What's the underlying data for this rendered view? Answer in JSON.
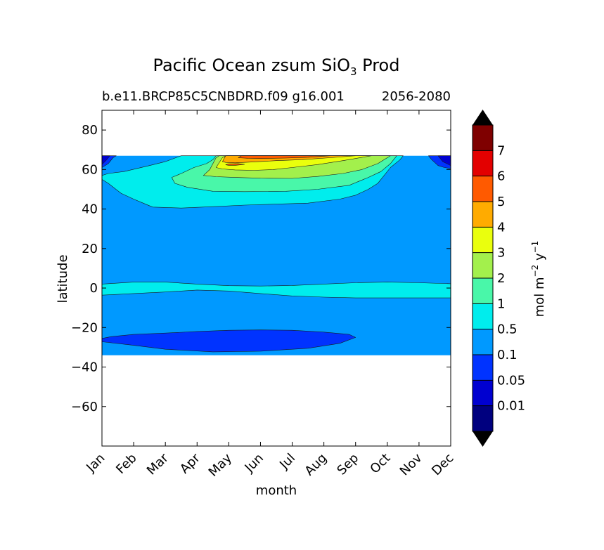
{
  "chart_data": {
    "type": "heatmap",
    "subtype": "filled-contour",
    "title": "Pacific Ocean zsum SiO",
    "title_subscript": "3",
    "title_suffix": " Prod",
    "subtitle_left": "b.e11.BRCP85C5CNBDRD.f09 g16.001",
    "subtitle_right": "2056-2080",
    "xlabel": "month",
    "ylabel": "latitude",
    "x_ticks": [
      "Jan",
      "Feb",
      "Mar",
      "Apr",
      "May",
      "Jun",
      "Jul",
      "Aug",
      "Sep",
      "Oct",
      "Nov",
      "Dec"
    ],
    "xlim": [
      0,
      11
    ],
    "ylim": [
      -80,
      90
    ],
    "y_ticks": [
      80,
      60,
      40,
      20,
      0,
      -20,
      -40,
      -60
    ],
    "y_tick_labels": [
      "80",
      "60",
      "40",
      "20",
      "0",
      "−20",
      "−40",
      "−60"
    ],
    "data_extent_lat": [
      -34,
      67
    ],
    "grid": false,
    "colorbar": {
      "orientation": "vertical",
      "label_main": "mol m",
      "label_exp1": "−2",
      "label_mid": " y",
      "label_exp2": "−1",
      "levels": [
        "0.01",
        "0.05",
        "0.1",
        "0.5",
        "1",
        "2",
        "3",
        "4",
        "5",
        "6",
        "7"
      ],
      "colors": [
        "#00007f",
        "#0000d0",
        "#0033ff",
        "#0099ff",
        "#00eded",
        "#49f7a9",
        "#a3f04c",
        "#eaff0d",
        "#ffab00",
        "#ff5a00",
        "#e30000",
        "#7f0000"
      ],
      "extend": "both"
    },
    "contour_regions": [
      {
        "level_index": 3,
        "label": "0.1 to 0.5",
        "points": [
          [
            0,
            -34
          ],
          [
            11,
            -34
          ],
          [
            11,
            67
          ],
          [
            0,
            67
          ]
        ]
      },
      {
        "level_index": 2,
        "label": "0.05 to 0.1",
        "points": [
          [
            0,
            -25.5
          ],
          [
            0.3,
            -24.6
          ],
          [
            1,
            -23.5
          ],
          [
            2,
            -22.8
          ],
          [
            3,
            -22
          ],
          [
            4,
            -21.4
          ],
          [
            5,
            -21.2
          ],
          [
            6,
            -21.4
          ],
          [
            7,
            -22.3
          ],
          [
            7.8,
            -23.5
          ],
          [
            8,
            -25
          ],
          [
            7.5,
            -28
          ],
          [
            6.5,
            -30.5
          ],
          [
            5,
            -32
          ],
          [
            3.5,
            -32.3
          ],
          [
            2,
            -31
          ],
          [
            1,
            -29
          ],
          [
            0,
            -27.2
          ]
        ]
      },
      {
        "level_index": 4,
        "label": "0.5 to 1",
        "points": [
          [
            0,
            2
          ],
          [
            1,
            3
          ],
          [
            2,
            3
          ],
          [
            3,
            2
          ],
          [
            4,
            1.2
          ],
          [
            5,
            1
          ],
          [
            6,
            1.3
          ],
          [
            7,
            2
          ],
          [
            8,
            2.7
          ],
          [
            9,
            3
          ],
          [
            10,
            2.7
          ],
          [
            11,
            2.2
          ],
          [
            11,
            -5
          ],
          [
            10,
            -5
          ],
          [
            9,
            -5
          ],
          [
            8,
            -5
          ],
          [
            7,
            -4.6
          ],
          [
            6,
            -4
          ],
          [
            5,
            -2.8
          ],
          [
            4,
            -1.5
          ],
          [
            3,
            -1
          ],
          [
            2,
            -2
          ],
          [
            1,
            -2.8
          ],
          [
            0,
            -3.6
          ]
        ]
      },
      {
        "level_index": 4,
        "label": "0.5 to 1",
        "points": [
          [
            0,
            57
          ],
          [
            0.2,
            58
          ],
          [
            0.7,
            59
          ],
          [
            1.5,
            62
          ],
          [
            2,
            64
          ],
          [
            2.5,
            67
          ],
          [
            9.5,
            67
          ],
          [
            9.4,
            65
          ],
          [
            9.1,
            61
          ],
          [
            8.9,
            57
          ],
          [
            8.7,
            53
          ],
          [
            8.4,
            50
          ],
          [
            8,
            47
          ],
          [
            7.5,
            45
          ],
          [
            6.5,
            43
          ],
          [
            5.5,
            42.5
          ],
          [
            4.5,
            42
          ],
          [
            3.5,
            41.2
          ],
          [
            2.5,
            40.5
          ],
          [
            1.6,
            41
          ],
          [
            1.3,
            43
          ],
          [
            1,
            45
          ],
          [
            0.6,
            48
          ],
          [
            0.2,
            53
          ],
          [
            0,
            55
          ]
        ]
      },
      {
        "level_index": 5,
        "label": "1 to 2",
        "points": [
          [
            2.2,
            56
          ],
          [
            2.5,
            58
          ],
          [
            2.9,
            61
          ],
          [
            3.3,
            63
          ],
          [
            3.5,
            65
          ],
          [
            3.6,
            67
          ],
          [
            9.3,
            67
          ],
          [
            9.1,
            63
          ],
          [
            8.8,
            59
          ],
          [
            8.4,
            56
          ],
          [
            7.8,
            52
          ],
          [
            6.8,
            50
          ],
          [
            5.8,
            49
          ],
          [
            4.5,
            48.8
          ],
          [
            3.5,
            49
          ],
          [
            2.7,
            51
          ],
          [
            2.3,
            53
          ]
        ]
      },
      {
        "level_index": 6,
        "label": "2 to 3",
        "points": [
          [
            3.2,
            57
          ],
          [
            3.4,
            60
          ],
          [
            3.5,
            63
          ],
          [
            3.6,
            66
          ],
          [
            3.7,
            67
          ],
          [
            9.1,
            67
          ],
          [
            8.7,
            63
          ],
          [
            8.2,
            60
          ],
          [
            7.6,
            58
          ],
          [
            6.8,
            56.5
          ],
          [
            6,
            55.5
          ],
          [
            5,
            55.6
          ],
          [
            4.2,
            56
          ],
          [
            3.6,
            56.4
          ]
        ]
      },
      {
        "level_index": 7,
        "label": "3 to 4",
        "points": [
          [
            3.6,
            61
          ],
          [
            3.7,
            63.5
          ],
          [
            3.8,
            66
          ],
          [
            3.9,
            67
          ],
          [
            8.5,
            67
          ],
          [
            7.6,
            64.5
          ],
          [
            6.8,
            62.5
          ],
          [
            6,
            61
          ],
          [
            5.4,
            60
          ],
          [
            4.8,
            59.6
          ],
          [
            4.2,
            59.8
          ],
          [
            3.8,
            60.3
          ]
        ]
      },
      {
        "level_index": 8,
        "label": "4 to 5",
        "points": [
          [
            3.8,
            64
          ],
          [
            3.9,
            67
          ],
          [
            8,
            67
          ],
          [
            7.2,
            66
          ],
          [
            6.3,
            65
          ],
          [
            5.5,
            64.5
          ],
          [
            4.7,
            63.8
          ],
          [
            4.2,
            63.4
          ],
          [
            3.9,
            63.6
          ]
        ]
      },
      {
        "level_index": 9,
        "label": "5 to 6",
        "points": [
          [
            4.3,
            66
          ],
          [
            4.4,
            67
          ],
          [
            7.2,
            67
          ],
          [
            6.5,
            66.2
          ],
          [
            5.8,
            65.8
          ],
          [
            5,
            65.6
          ],
          [
            4.6,
            65.7
          ]
        ]
      },
      {
        "level_index": 9,
        "label": "5 to 6",
        "points": [
          [
            3.9,
            62.4
          ],
          [
            4,
            62.9
          ],
          [
            4.3,
            63
          ],
          [
            4.5,
            62.6
          ],
          [
            4.2,
            62.1
          ],
          [
            4,
            62.1
          ]
        ]
      },
      {
        "level_index": 2,
        "label": "0.05 to 0.1",
        "points": [
          [
            0,
            61
          ],
          [
            0.2,
            63
          ],
          [
            0.35,
            66
          ],
          [
            0.45,
            67
          ],
          [
            0,
            67
          ]
        ]
      },
      {
        "level_index": 1,
        "label": "0.01 to 0.05",
        "points": [
          [
            0,
            62.5
          ],
          [
            0.15,
            65
          ],
          [
            0.25,
            67
          ],
          [
            0,
            67
          ]
        ]
      },
      {
        "level_index": 2,
        "label": "0.05 to 0.1",
        "points": [
          [
            10.3,
            67
          ],
          [
            10.4,
            65
          ],
          [
            10.6,
            62
          ],
          [
            10.8,
            61
          ],
          [
            11,
            60.5
          ],
          [
            11,
            67
          ]
        ]
      },
      {
        "level_index": 1,
        "label": "0.01 to 0.05",
        "points": [
          [
            10.6,
            67
          ],
          [
            10.75,
            64
          ],
          [
            11,
            62
          ],
          [
            11,
            67
          ]
        ]
      }
    ]
  }
}
